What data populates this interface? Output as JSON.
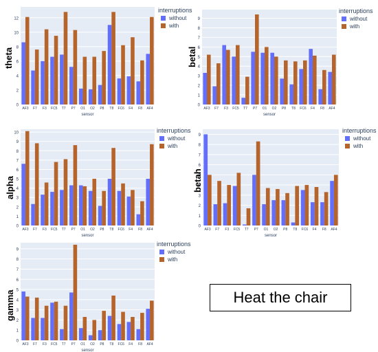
{
  "legend": {
    "title": "interruptions",
    "items": [
      {
        "label": "without",
        "color": "#636efa"
      },
      {
        "label": "with",
        "color": "#b5652b"
      }
    ]
  },
  "note": {
    "text": "Heat the chair"
  },
  "chart_data": [
    {
      "type": "bar",
      "title": "",
      "xlabel": "sensor",
      "ylabel": "theta",
      "categories": [
        "AF3",
        "F7",
        "F3",
        "FC5",
        "T7",
        "P7",
        "O1",
        "O2",
        "P8",
        "T8",
        "FC6",
        "F4",
        "F8",
        "AF4"
      ],
      "series": [
        {
          "name": "without",
          "values": [
            8.6,
            4.7,
            6.0,
            6.6,
            6.9,
            5.2,
            2.2,
            2.1,
            2.7,
            11.0,
            3.6,
            3.9,
            3.2,
            7.0
          ]
        },
        {
          "name": "with",
          "values": [
            12.1,
            7.6,
            10.4,
            9.5,
            12.8,
            10.3,
            6.6,
            6.6,
            7.4,
            12.8,
            8.2,
            9.3,
            6.1,
            12.1
          ]
        }
      ],
      "yticks": [
        0,
        2,
        4,
        6,
        8,
        10,
        12
      ],
      "ylim": [
        0,
        13.5
      ],
      "grid": true,
      "legend_position": "top-right"
    },
    {
      "type": "bar",
      "title": "",
      "xlabel": "sensor",
      "ylabel": "betal",
      "categories": [
        "AF3",
        "F7",
        "F3",
        "FC5",
        "T7",
        "P7",
        "O1",
        "O2",
        "P8",
        "T8",
        "FC6",
        "F4",
        "F8",
        "AF4"
      ],
      "series": [
        {
          "name": "without",
          "values": [
            3.3,
            1.9,
            6.2,
            5.0,
            0.7,
            5.5,
            5.4,
            5.4,
            2.7,
            2.1,
            3.7,
            5.8,
            1.6,
            3.4
          ]
        },
        {
          "name": "with",
          "values": [
            5.2,
            4.3,
            5.7,
            6.2,
            2.9,
            9.4,
            6.0,
            5.0,
            4.6,
            4.5,
            4.6,
            5.1,
            3.6,
            5.2
          ]
        }
      ],
      "yticks": [
        0,
        1,
        2,
        3,
        4,
        5,
        6,
        7,
        8,
        9
      ],
      "ylim": [
        0,
        9.9
      ],
      "grid": true,
      "legend_position": "top-right"
    },
    {
      "type": "bar",
      "title": "",
      "xlabel": "sensor",
      "ylabel": "alpha",
      "categories": [
        "AF3",
        "F7",
        "F3",
        "FC5",
        "T7",
        "P7",
        "O1",
        "O2",
        "P8",
        "T8",
        "FC6",
        "F4",
        "F8",
        "AF4"
      ],
      "series": [
        {
          "name": "without",
          "values": [
            6.6,
            2.3,
            3.3,
            3.6,
            3.8,
            4.3,
            4.3,
            3.7,
            2.1,
            5.0,
            3.7,
            3.1,
            1.2,
            5.0
          ]
        },
        {
          "name": "with",
          "values": [
            10.1,
            8.8,
            4.6,
            6.8,
            7.1,
            8.6,
            4.2,
            5.0,
            3.7,
            8.3,
            4.5,
            3.8,
            2.6,
            8.7
          ]
        }
      ],
      "yticks": [
        0,
        1,
        2,
        3,
        4,
        5,
        6,
        7,
        8,
        9,
        10
      ],
      "ylim": [
        0,
        10.3
      ],
      "grid": true,
      "legend_position": "top-right"
    },
    {
      "type": "bar",
      "title": "",
      "xlabel": "sensor",
      "ylabel": "betah",
      "categories": [
        "AF3",
        "F7",
        "F3",
        "FC5",
        "T7",
        "P7",
        "O1",
        "O2",
        "P8",
        "T8",
        "FC6",
        "F4",
        "F8",
        "AF4"
      ],
      "series": [
        {
          "name": "without",
          "values": [
            9.0,
            2.1,
            2.2,
            3.9,
            0.1,
            5.0,
            2.1,
            2.5,
            2.5,
            0.3,
            3.5,
            2.3,
            2.3,
            4.4
          ]
        },
        {
          "name": "with",
          "values": [
            5.0,
            4.4,
            4.0,
            5.2,
            1.7,
            8.3,
            3.7,
            3.6,
            3.2,
            3.9,
            4.0,
            3.8,
            3.3,
            5.0
          ]
        }
      ],
      "yticks": [
        0,
        1,
        2,
        3,
        4,
        5,
        6,
        7,
        8,
        9
      ],
      "ylim": [
        0,
        9.5
      ],
      "grid": true,
      "legend_position": "top-right"
    },
    {
      "type": "bar",
      "title": "",
      "xlabel": "sensor",
      "ylabel": "gamma",
      "categories": [
        "AF3",
        "F7",
        "F3",
        "FC5",
        "T7",
        "P7",
        "O1",
        "O2",
        "P8",
        "T8",
        "FC6",
        "F4",
        "F8",
        "AF4"
      ],
      "series": [
        {
          "name": "without",
          "values": [
            4.8,
            2.2,
            2.2,
            3.7,
            1.1,
            4.7,
            1.2,
            0.5,
            1.0,
            2.4,
            1.6,
            1.8,
            1.1,
            3.1
          ]
        },
        {
          "name": "with",
          "values": [
            4.3,
            4.2,
            3.4,
            3.8,
            3.4,
            9.4,
            2.3,
            2.0,
            2.9,
            4.4,
            2.8,
            2.3,
            2.7,
            3.9
          ]
        }
      ],
      "yticks": [
        0,
        1,
        2,
        3,
        4,
        5,
        6,
        7,
        8,
        9
      ],
      "ylim": [
        0,
        9.6
      ],
      "grid": true,
      "legend_position": "top-right"
    }
  ]
}
